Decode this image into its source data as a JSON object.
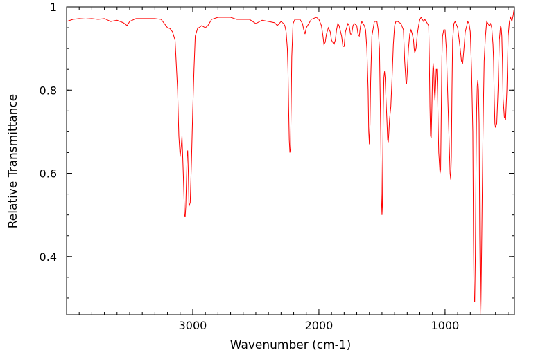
{
  "chart_data": {
    "type": "line",
    "title": "",
    "xlabel": "Wavenumber (cm-1)",
    "ylabel": "Relative Transmittance",
    "xlim": [
      4000,
      450
    ],
    "ylim": [
      0.26,
      1.0
    ],
    "x_reversed": true,
    "grid": false,
    "legend": "none",
    "line_color": "#ff0000",
    "x_ticks": [
      {
        "value": 3000,
        "label": "3000"
      },
      {
        "value": 2000,
        "label": "2000"
      },
      {
        "value": 1000,
        "label": "1000"
      }
    ],
    "y_ticks": [
      {
        "value": 1.0,
        "label": "1"
      },
      {
        "value": 0.8,
        "label": "0.8"
      },
      {
        "value": 0.6,
        "label": "0.6"
      },
      {
        "value": 0.4,
        "label": "0.4"
      }
    ],
    "x_minor_step": 100,
    "y_minor_step": 0.05,
    "series": [
      {
        "x": [
          4000,
          3950,
          3900,
          3850,
          3800,
          3750,
          3700,
          3650,
          3600,
          3550,
          3520,
          3500,
          3450,
          3400,
          3350,
          3300,
          3250,
          3200,
          3180,
          3160,
          3140,
          3120,
          3110,
          3100,
          3090,
          3085,
          3075,
          3065,
          3060,
          3055,
          3045,
          3040,
          3035,
          3030,
          3020,
          3010,
          3000,
          2990,
          2980,
          2960,
          2950,
          2930,
          2900,
          2880,
          2850,
          2800,
          2700,
          2650,
          2600,
          2550,
          2500,
          2450,
          2400,
          2350,
          2330,
          2300,
          2280,
          2270,
          2260,
          2250,
          2245,
          2240,
          2235,
          2230,
          2225,
          2220,
          2215,
          2205,
          2190,
          2150,
          2130,
          2120,
          2110,
          2100,
          2060,
          2020,
          2000,
          1980,
          1970,
          1960,
          1950,
          1940,
          1925,
          1910,
          1900,
          1880,
          1870,
          1860,
          1850,
          1840,
          1820,
          1810,
          1800,
          1790,
          1770,
          1760,
          1750,
          1740,
          1730,
          1720,
          1700,
          1690,
          1680,
          1670,
          1660,
          1650,
          1640,
          1630,
          1620,
          1610,
          1605,
          1600,
          1595,
          1590,
          1580,
          1560,
          1540,
          1530,
          1520,
          1510,
          1505,
          1500,
          1497,
          1495,
          1490,
          1485,
          1480,
          1475,
          1470,
          1460,
          1455,
          1450,
          1445,
          1440,
          1430,
          1420,
          1410,
          1400,
          1390,
          1375,
          1350,
          1330,
          1320,
          1310,
          1305,
          1300,
          1290,
          1280,
          1270,
          1260,
          1250,
          1245,
          1240,
          1230,
          1220,
          1210,
          1200,
          1190,
          1180,
          1170,
          1160,
          1150,
          1140,
          1130,
          1125,
          1120,
          1115,
          1110,
          1105,
          1100,
          1095,
          1090,
          1085,
          1080,
          1075,
          1070,
          1065,
          1060,
          1055,
          1050,
          1040,
          1035,
          1030,
          1025,
          1020,
          1010,
          1000,
          990,
          980,
          970,
          960,
          955,
          950,
          945,
          940,
          930,
          920,
          900,
          880,
          870,
          860,
          850,
          840,
          820,
          810,
          800,
          790,
          780,
          775,
          770,
          765,
          760,
          755,
          750,
          745,
          740,
          735,
          730,
          728,
          725,
          720,
          717,
          715,
          710,
          705,
          700,
          695,
          690,
          680,
          670,
          660,
          650,
          640,
          630,
          620,
          615,
          610,
          605,
          600,
          590,
          580,
          570,
          560,
          555,
          550,
          545,
          540,
          530,
          520,
          510,
          500,
          490,
          480,
          470,
          460,
          450
        ],
        "y": [
          0.965,
          0.97,
          0.972,
          0.971,
          0.972,
          0.97,
          0.972,
          0.965,
          0.968,
          0.962,
          0.955,
          0.965,
          0.972,
          0.972,
          0.972,
          0.972,
          0.97,
          0.95,
          0.948,
          0.94,
          0.92,
          0.8,
          0.69,
          0.64,
          0.67,
          0.69,
          0.6,
          0.5,
          0.495,
          0.52,
          0.64,
          0.655,
          0.6,
          0.52,
          0.53,
          0.63,
          0.75,
          0.85,
          0.93,
          0.95,
          0.95,
          0.955,
          0.95,
          0.955,
          0.97,
          0.975,
          0.975,
          0.97,
          0.97,
          0.97,
          0.96,
          0.968,
          0.965,
          0.962,
          0.955,
          0.965,
          0.96,
          0.955,
          0.94,
          0.9,
          0.85,
          0.76,
          0.68,
          0.65,
          0.66,
          0.76,
          0.88,
          0.96,
          0.97,
          0.97,
          0.96,
          0.945,
          0.935,
          0.95,
          0.97,
          0.975,
          0.97,
          0.955,
          0.935,
          0.91,
          0.915,
          0.935,
          0.95,
          0.94,
          0.92,
          0.91,
          0.92,
          0.945,
          0.96,
          0.955,
          0.93,
          0.905,
          0.905,
          0.94,
          0.96,
          0.955,
          0.935,
          0.935,
          0.955,
          0.96,
          0.955,
          0.935,
          0.93,
          0.955,
          0.965,
          0.96,
          0.955,
          0.945,
          0.9,
          0.8,
          0.7,
          0.67,
          0.72,
          0.82,
          0.93,
          0.965,
          0.965,
          0.945,
          0.9,
          0.7,
          0.55,
          0.5,
          0.52,
          0.6,
          0.75,
          0.83,
          0.845,
          0.83,
          0.79,
          0.72,
          0.68,
          0.675,
          0.7,
          0.73,
          0.76,
          0.83,
          0.91,
          0.955,
          0.965,
          0.965,
          0.96,
          0.945,
          0.87,
          0.82,
          0.815,
          0.84,
          0.9,
          0.935,
          0.945,
          0.935,
          0.92,
          0.9,
          0.89,
          0.9,
          0.935,
          0.955,
          0.97,
          0.975,
          0.97,
          0.965,
          0.97,
          0.965,
          0.96,
          0.955,
          0.88,
          0.76,
          0.69,
          0.685,
          0.75,
          0.83,
          0.865,
          0.85,
          0.8,
          0.775,
          0.81,
          0.85,
          0.85,
          0.8,
          0.72,
          0.65,
          0.6,
          0.61,
          0.75,
          0.88,
          0.93,
          0.945,
          0.945,
          0.9,
          0.8,
          0.7,
          0.6,
          0.585,
          0.64,
          0.8,
          0.92,
          0.96,
          0.965,
          0.95,
          0.9,
          0.87,
          0.865,
          0.9,
          0.94,
          0.965,
          0.96,
          0.94,
          0.85,
          0.7,
          0.45,
          0.3,
          0.29,
          0.4,
          0.6,
          0.75,
          0.81,
          0.825,
          0.8,
          0.72,
          0.6,
          0.45,
          0.3,
          0.26,
          0.3,
          0.42,
          0.56,
          0.68,
          0.78,
          0.87,
          0.93,
          0.965,
          0.96,
          0.955,
          0.96,
          0.95,
          0.91,
          0.87,
          0.78,
          0.72,
          0.71,
          0.72,
          0.8,
          0.92,
          0.955,
          0.95,
          0.93,
          0.87,
          0.78,
          0.735,
          0.73,
          0.8,
          0.93,
          0.965,
          0.975,
          0.965,
          0.98,
          1.0
        ]
      }
    ]
  }
}
